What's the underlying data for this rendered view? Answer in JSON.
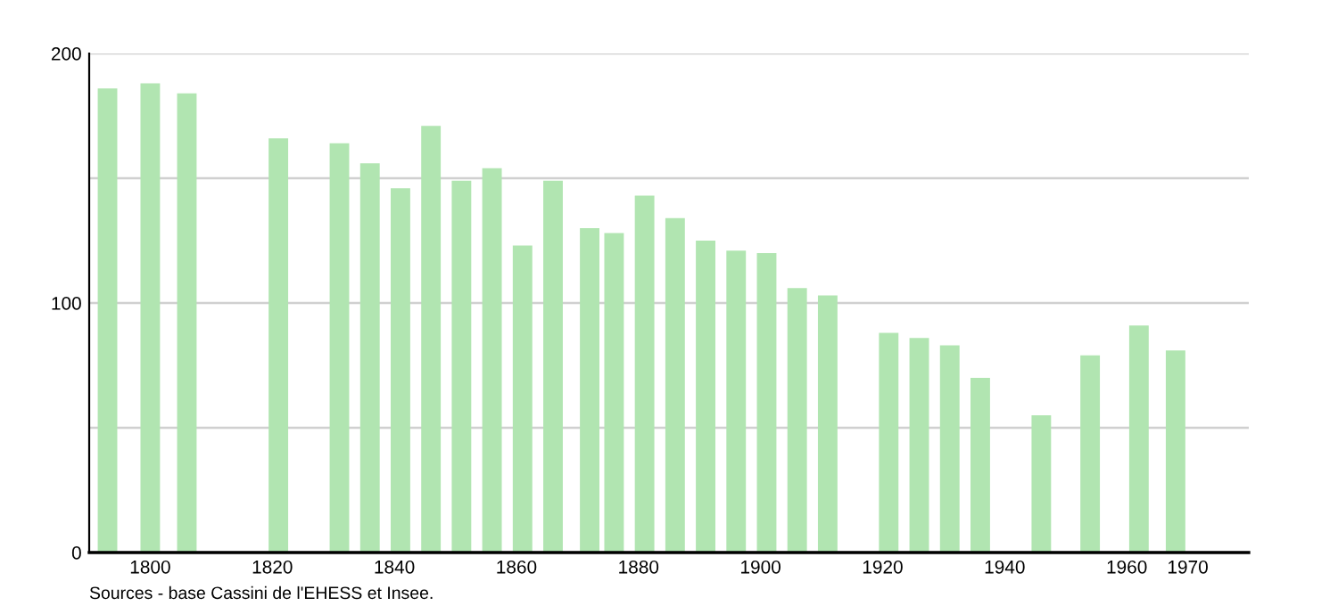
{
  "chart_data": {
    "type": "bar",
    "x": [
      1793,
      1800,
      1806,
      1821,
      1831,
      1836,
      1841,
      1846,
      1851,
      1856,
      1861,
      1866,
      1872,
      1876,
      1881,
      1886,
      1891,
      1896,
      1901,
      1906,
      1911,
      1921,
      1926,
      1931,
      1936,
      1946,
      1954,
      1962,
      1968
    ],
    "values": [
      186,
      188,
      184,
      166,
      164,
      156,
      146,
      171,
      149,
      154,
      123,
      149,
      130,
      128,
      143,
      134,
      125,
      121,
      120,
      106,
      103,
      88,
      86,
      83,
      70,
      55,
      79,
      91,
      81
    ],
    "color": "#b1e5b1",
    "xlim": [
      1790,
      1980
    ],
    "xticks": [
      1800,
      1820,
      1840,
      1860,
      1880,
      1900,
      1920,
      1940,
      1960,
      1970
    ],
    "ylim": [
      0,
      200
    ],
    "yticks": [
      0,
      {
        "value": 50,
        "label": null
      },
      100,
      {
        "value": 150,
        "label": null
      },
      200
    ],
    "grid": "y",
    "annotations": [
      "Sources - base Cassini de l'EHESS et Insee."
    ]
  }
}
